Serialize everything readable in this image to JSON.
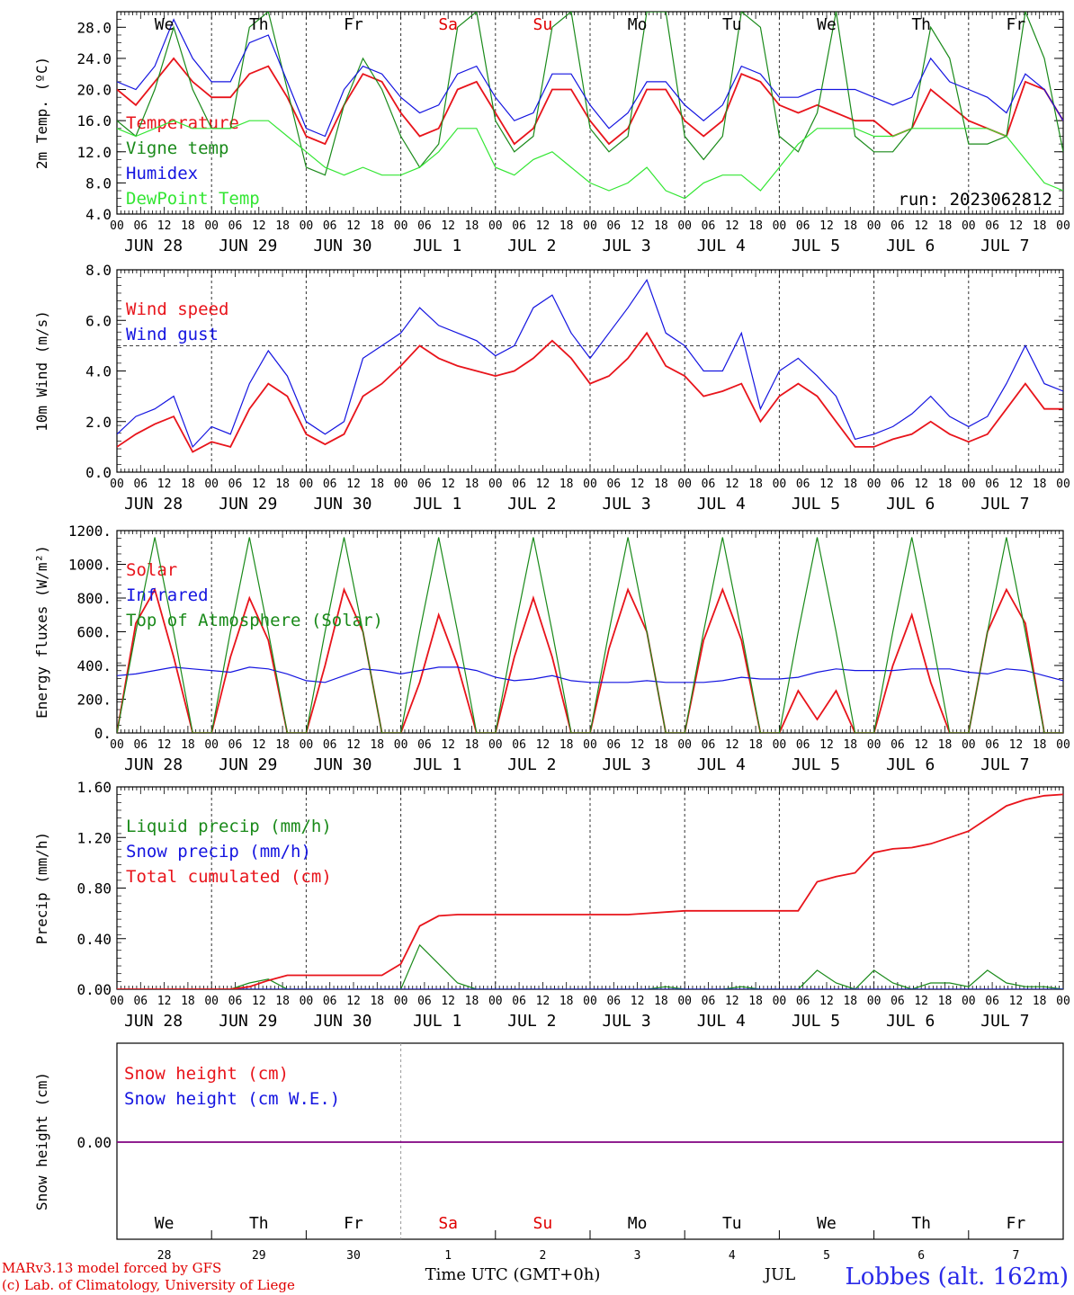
{
  "colors": {
    "red": "#e8141b",
    "blue": "#1414e0",
    "green": "#1a8a1a",
    "lightgreen": "#33e633",
    "purple": "#800080"
  },
  "days": [
    "We",
    "Th",
    "Fr",
    "Sa",
    "Su",
    "Mo",
    "Tu",
    "We",
    "Th",
    "Fr"
  ],
  "weekend_days": [
    3,
    4
  ],
  "date_labels": [
    "JUN 28",
    "JUN 29",
    "JUN 30",
    "JUL  1",
    "JUL  2",
    "JUL  3",
    "JUL  4",
    "JUL  5",
    "JUL  6",
    "JUL  7"
  ],
  "hour_ticks": [
    "00",
    "06",
    "12",
    "18"
  ],
  "bottom": {
    "day_numbers": [
      "28",
      "29",
      "30",
      "1",
      "2",
      "3",
      "4",
      "5",
      "6",
      "7"
    ],
    "month": "JUL",
    "xlabel": "Time UTC (GMT+0h)",
    "credit_line1": "MARv3.13 model forced by GFS",
    "credit_line2": "(c) Lab. of Climatology, University of Liege",
    "station": "Lobbes (alt. 162m)"
  },
  "chart_data": [
    {
      "type": "line",
      "ylabel": "2m Temp. (ºC)",
      "ylim": [
        4.0,
        30.0
      ],
      "yticks": [
        "4.0",
        "8.0",
        "12.0",
        "16.0",
        "20.0",
        "24.0",
        "28.0"
      ],
      "annotation": "run: 2023062812",
      "series": [
        {
          "name": "Temperature",
          "color": "red",
          "values": [
            20,
            18,
            21,
            24,
            21,
            19,
            19,
            22,
            23,
            19,
            14,
            13,
            18,
            22,
            21,
            17,
            14,
            15,
            20,
            21,
            17,
            13,
            15,
            20,
            20,
            16,
            13,
            15,
            20,
            20,
            16,
            14,
            16,
            22,
            21,
            18,
            17,
            18,
            17,
            16,
            16,
            14,
            15,
            20,
            18,
            16,
            15,
            14,
            21,
            20,
            16
          ]
        },
        {
          "name": "Vigne temp",
          "color": "green",
          "values": [
            16,
            14,
            20,
            28,
            20,
            15,
            15,
            28,
            30,
            20,
            10,
            9,
            18,
            24,
            20,
            14,
            10,
            13,
            28,
            30,
            16,
            12,
            14,
            28,
            30,
            15,
            12,
            14,
            30,
            30,
            14,
            11,
            14,
            30,
            28,
            14,
            12,
            17,
            30,
            14,
            12,
            12,
            15,
            28,
            24,
            13,
            13,
            14,
            30,
            24,
            12
          ]
        },
        {
          "name": "Humidex",
          "color": "blue",
          "values": [
            21,
            20,
            23,
            29,
            24,
            21,
            21,
            26,
            27,
            21,
            15,
            14,
            20,
            23,
            22,
            19,
            17,
            18,
            22,
            23,
            19,
            16,
            17,
            22,
            22,
            18,
            15,
            17,
            21,
            21,
            18,
            16,
            18,
            23,
            22,
            19,
            19,
            20,
            20,
            20,
            19,
            18,
            19,
            24,
            21,
            20,
            19,
            17,
            22,
            20,
            16
          ]
        },
        {
          "name": "DewPoint Temp",
          "color": "lightgreen",
          "values": [
            15,
            14,
            15,
            16,
            15,
            15,
            15,
            16,
            16,
            14,
            12,
            10,
            9,
            10,
            9,
            9,
            10,
            12,
            15,
            15,
            10,
            9,
            11,
            12,
            10,
            8,
            7,
            8,
            10,
            7,
            6,
            8,
            9,
            9,
            7,
            10,
            13,
            15,
            15,
            15,
            14,
            14,
            15,
            15,
            15,
            15,
            15,
            14,
            11,
            8,
            7
          ]
        }
      ]
    },
    {
      "type": "line",
      "ylabel": "10m Wind (m/s)",
      "ylim": [
        0.0,
        8.0
      ],
      "yticks": [
        "0.0",
        "2.0",
        "4.0",
        "6.0",
        "8.0"
      ],
      "reference_line": 5.0,
      "series": [
        {
          "name": "Wind speed",
          "color": "red",
          "values": [
            1.0,
            1.5,
            1.9,
            2.2,
            0.8,
            1.2,
            1.0,
            2.5,
            3.5,
            3.0,
            1.5,
            1.1,
            1.5,
            3.0,
            3.5,
            4.2,
            5.0,
            4.5,
            4.2,
            4.0,
            3.8,
            4.0,
            4.5,
            5.2,
            4.5,
            3.5,
            3.8,
            4.5,
            5.5,
            4.2,
            3.8,
            3.0,
            3.2,
            3.5,
            2.0,
            3.0,
            3.5,
            3.0,
            2.0,
            1.0,
            1.0,
            1.3,
            1.5,
            2.0,
            1.5,
            1.2,
            1.5,
            2.5,
            3.5,
            2.5,
            2.5
          ]
        },
        {
          "name": "Wind gust",
          "color": "blue",
          "values": [
            1.5,
            2.2,
            2.5,
            3.0,
            1.0,
            1.8,
            1.5,
            3.5,
            4.8,
            3.8,
            2.0,
            1.5,
            2.0,
            4.5,
            5.0,
            5.5,
            6.5,
            5.8,
            5.5,
            5.2,
            4.6,
            5.0,
            6.5,
            7.0,
            5.5,
            4.5,
            5.5,
            6.5,
            7.6,
            5.5,
            5.0,
            4.0,
            4.0,
            5.5,
            2.5,
            4.0,
            4.5,
            3.8,
            3.0,
            1.3,
            1.5,
            1.8,
            2.3,
            3.0,
            2.2,
            1.8,
            2.2,
            3.5,
            5.0,
            3.5,
            3.2
          ]
        }
      ]
    },
    {
      "type": "line",
      "ylabel": "Energy fluxes (W/m²)",
      "ylim": [
        0,
        1200
      ],
      "yticks": [
        "0.",
        "200.",
        "400.",
        "600.",
        "800.",
        "1000.",
        "1200."
      ],
      "series": [
        {
          "name": "Solar",
          "color": "red",
          "values": [
            0,
            650,
            850,
            450,
            0,
            0,
            450,
            800,
            550,
            0,
            0,
            400,
            850,
            600,
            0,
            0,
            300,
            700,
            400,
            0,
            0,
            450,
            800,
            450,
            0,
            0,
            500,
            850,
            600,
            0,
            0,
            550,
            850,
            550,
            0,
            0,
            250,
            80,
            250,
            0,
            0,
            400,
            700,
            300,
            0,
            0,
            600,
            850,
            650,
            0,
            0
          ]
        },
        {
          "name": "Infrared",
          "color": "blue",
          "values": [
            340,
            350,
            370,
            390,
            380,
            370,
            360,
            390,
            380,
            350,
            310,
            300,
            340,
            380,
            370,
            350,
            370,
            390,
            390,
            370,
            330,
            310,
            320,
            340,
            310,
            300,
            300,
            300,
            310,
            300,
            300,
            300,
            310,
            330,
            320,
            320,
            330,
            360,
            380,
            370,
            370,
            370,
            380,
            380,
            380,
            360,
            350,
            380,
            370,
            340,
            310
          ]
        },
        {
          "name": "Top of Atmosphere (Solar)",
          "color": "green",
          "values": [
            0,
            600,
            1160,
            600,
            0,
            0,
            600,
            1160,
            600,
            0,
            0,
            600,
            1160,
            600,
            0,
            0,
            600,
            1160,
            600,
            0,
            0,
            600,
            1160,
            600,
            0,
            0,
            600,
            1160,
            600,
            0,
            0,
            600,
            1160,
            600,
            0,
            0,
            600,
            1160,
            600,
            0,
            0,
            600,
            1160,
            600,
            0,
            0,
            600,
            1160,
            600,
            0,
            0
          ]
        }
      ]
    },
    {
      "type": "line",
      "ylabel": "Precip (mm/h)",
      "ylim": [
        0.0,
        1.6
      ],
      "yticks": [
        "0.00",
        "0.40",
        "0.80",
        "1.20",
        "1.60"
      ],
      "series": [
        {
          "name": "Liquid precip (mm/h)",
          "color": "green",
          "values": [
            0,
            0,
            0,
            0,
            0,
            0,
            0,
            0.05,
            0.08,
            0,
            0,
            0,
            0,
            0,
            0,
            0,
            0.35,
            0.2,
            0.05,
            0,
            0,
            0,
            0,
            0,
            0,
            0,
            0,
            0,
            0,
            0.02,
            0,
            0,
            0,
            0.02,
            0,
            0,
            0,
            0.15,
            0.05,
            0,
            0.15,
            0.05,
            0,
            0.05,
            0.05,
            0.02,
            0.15,
            0.05,
            0.02,
            0.02,
            0
          ]
        },
        {
          "name": "Snow precip (mm/h)",
          "color": "blue",
          "values": [
            0,
            0,
            0,
            0,
            0,
            0,
            0,
            0,
            0,
            0,
            0,
            0,
            0,
            0,
            0,
            0,
            0,
            0,
            0,
            0,
            0,
            0,
            0,
            0,
            0,
            0,
            0,
            0,
            0,
            0,
            0,
            0,
            0,
            0,
            0,
            0,
            0,
            0,
            0,
            0,
            0,
            0,
            0,
            0,
            0,
            0,
            0,
            0,
            0,
            0,
            0
          ]
        },
        {
          "name": "Total cumulated (cm)",
          "color": "red",
          "values": [
            0,
            0,
            0,
            0,
            0,
            0,
            0,
            0.02,
            0.07,
            0.11,
            0.11,
            0.11,
            0.11,
            0.11,
            0.11,
            0.2,
            0.5,
            0.58,
            0.59,
            0.59,
            0.59,
            0.59,
            0.59,
            0.59,
            0.59,
            0.59,
            0.59,
            0.59,
            0.6,
            0.61,
            0.62,
            0.62,
            0.62,
            0.62,
            0.62,
            0.62,
            0.62,
            0.85,
            0.89,
            0.92,
            1.08,
            1.11,
            1.12,
            1.15,
            1.2,
            1.25,
            1.35,
            1.45,
            1.5,
            1.53,
            1.54
          ]
        }
      ]
    },
    {
      "type": "line",
      "ylabel": "Snow height (cm)",
      "ytick": "0.00",
      "series": [
        {
          "name": "Snow height (cm)",
          "color": "red",
          "value": 0.0
        },
        {
          "name": "Snow height (cm W.E.)",
          "color": "blue",
          "value": 0.0
        }
      ]
    }
  ]
}
